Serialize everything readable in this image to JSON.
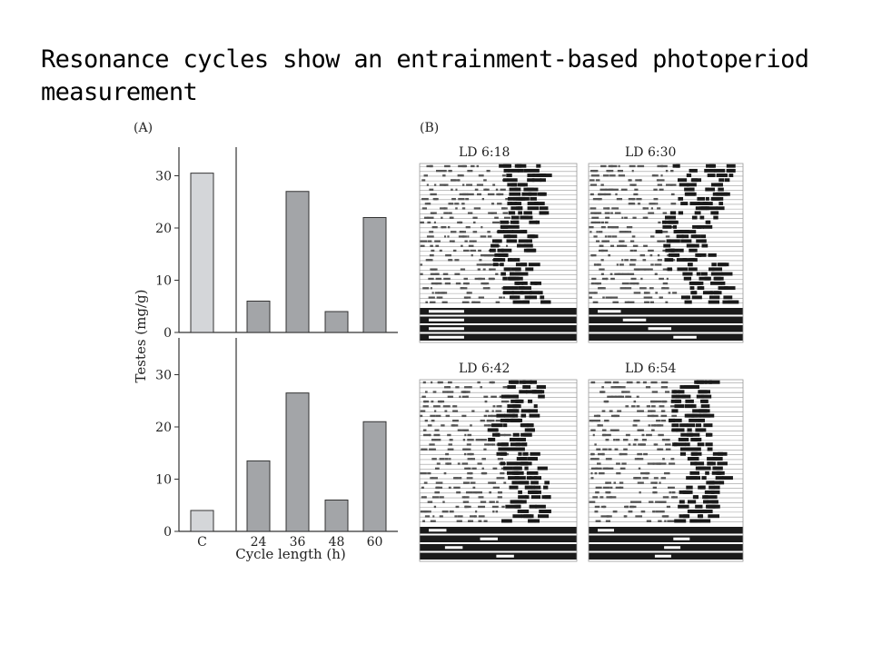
{
  "slide": {
    "title": "Resonance cycles show an entrainment-based photoperiod measurement"
  },
  "colors": {
    "control_bar": "#d4d6d9",
    "cycle_bar": "#a3a5a8",
    "bar_outline": "#333333",
    "actogram_light": "#ffffff",
    "actogram_dark": "#1a1a1a",
    "axis": "#333333"
  },
  "chart_data": [
    {
      "type": "bar",
      "panel_label": "(A)",
      "position": "top",
      "categories": [
        "C",
        "24",
        "36",
        "48",
        "60"
      ],
      "values": [
        30.5,
        6,
        27,
        4,
        22
      ],
      "ylim": [
        0,
        35
      ],
      "yticks": [
        0,
        10,
        20,
        30
      ],
      "ylabel": "Testes (mg/g)",
      "xlabel": "",
      "grid": false
    },
    {
      "type": "bar",
      "panel_label": "",
      "position": "bottom",
      "categories": [
        "C",
        "24",
        "36",
        "48",
        "60"
      ],
      "values": [
        4,
        13.5,
        26.5,
        6,
        21
      ],
      "ylim": [
        0,
        35
      ],
      "yticks": [
        0,
        10,
        20,
        30
      ],
      "ylabel": "Testes (mg/g)",
      "xlabel": "Cycle length (h)",
      "grid": false
    }
  ],
  "actograms": {
    "panel_label": "(B)",
    "items": [
      {
        "label": "LD 6:18",
        "light_hours": 6,
        "dark_hours": 18
      },
      {
        "label": "LD 6:30",
        "light_hours": 6,
        "dark_hours": 30
      },
      {
        "label": "LD 6:42",
        "light_hours": 6,
        "dark_hours": 42
      },
      {
        "label": "LD 6:54",
        "light_hours": 6,
        "dark_hours": 54
      }
    ]
  }
}
